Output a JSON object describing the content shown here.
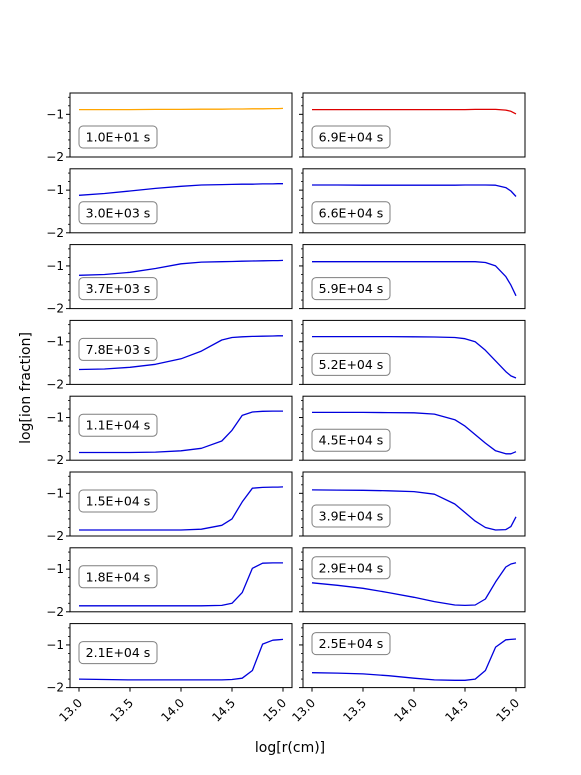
{
  "figure": {
    "ylabel": "log[ion fraction]",
    "xlabel": "log[r(cm)]"
  },
  "chart_data": {
    "type": "line",
    "layout": "8 rows x 2 columns of small multiples, shared x axis",
    "xlim": [
      13.0,
      15.0
    ],
    "ylim": [
      -2,
      -0.5
    ],
    "x_ticks": [
      "13.0",
      "13.5",
      "14.0",
      "14.5",
      "15.0"
    ],
    "x_tick_values": [
      13.0,
      13.5,
      14.0,
      14.5,
      15.0
    ],
    "y_ticks": [
      "−1",
      "−2"
    ],
    "y_tick_values": [
      -1,
      -2
    ],
    "grid": false,
    "colors": {
      "first_left": "#FFA500",
      "first_right": "#DD0000",
      "default": "#0000DD"
    },
    "x": [
      13.0,
      13.25,
      13.5,
      13.75,
      14.0,
      14.2,
      14.4,
      14.5,
      14.6,
      14.7,
      14.8,
      14.9,
      14.95,
      15.0
    ],
    "panels": [
      {
        "label": "1.0E+01 s",
        "column": "left",
        "row": 0,
        "color": "#FFA500",
        "y": [
          -0.89,
          -0.89,
          -0.89,
          -0.885,
          -0.885,
          -0.88,
          -0.88,
          -0.875,
          -0.875,
          -0.87,
          -0.87,
          -0.865,
          -0.865,
          -0.86
        ]
      },
      {
        "label": "6.9E+04 s",
        "column": "right",
        "row": 0,
        "color": "#DD0000",
        "y": [
          -0.89,
          -0.89,
          -0.89,
          -0.89,
          -0.89,
          -0.89,
          -0.89,
          -0.89,
          -0.885,
          -0.885,
          -0.885,
          -0.9,
          -0.93,
          -0.99
        ]
      },
      {
        "label": "3.0E+03 s",
        "column": "left",
        "row": 1,
        "color": "#0000DD",
        "y": [
          -1.12,
          -1.08,
          -1.02,
          -0.96,
          -0.91,
          -0.88,
          -0.87,
          -0.865,
          -0.86,
          -0.86,
          -0.855,
          -0.855,
          -0.85,
          -0.85
        ]
      },
      {
        "label": "6.6E+04 s",
        "column": "right",
        "row": 1,
        "color": "#0000DD",
        "y": [
          -0.88,
          -0.88,
          -0.885,
          -0.885,
          -0.885,
          -0.885,
          -0.885,
          -0.88,
          -0.88,
          -0.88,
          -0.885,
          -0.94,
          -1.02,
          -1.15
        ]
      },
      {
        "label": "3.7E+03 s",
        "column": "left",
        "row": 2,
        "color": "#0000DD",
        "y": [
          -1.22,
          -1.2,
          -1.15,
          -1.06,
          -0.95,
          -0.91,
          -0.9,
          -0.895,
          -0.89,
          -0.885,
          -0.88,
          -0.875,
          -0.875,
          -0.87
        ]
      },
      {
        "label": "5.9E+04 s",
        "column": "right",
        "row": 2,
        "color": "#0000DD",
        "y": [
          -0.9,
          -0.9,
          -0.9,
          -0.9,
          -0.9,
          -0.9,
          -0.9,
          -0.9,
          -0.9,
          -0.92,
          -1.0,
          -1.25,
          -1.45,
          -1.7
        ]
      },
      {
        "label": "7.8E+03 s",
        "column": "left",
        "row": 3,
        "color": "#0000DD",
        "y": [
          -1.65,
          -1.64,
          -1.6,
          -1.53,
          -1.4,
          -1.22,
          -0.96,
          -0.9,
          -0.885,
          -0.875,
          -0.87,
          -0.865,
          -0.86,
          -0.86
        ]
      },
      {
        "label": "5.2E+04 s",
        "column": "right",
        "row": 3,
        "color": "#0000DD",
        "y": [
          -0.88,
          -0.88,
          -0.88,
          -0.88,
          -0.885,
          -0.89,
          -0.9,
          -0.93,
          -1.0,
          -1.2,
          -1.45,
          -1.7,
          -1.8,
          -1.85
        ]
      },
      {
        "label": "1.1E+04 s",
        "column": "left",
        "row": 4,
        "color": "#0000DD",
        "y": [
          -1.82,
          -1.82,
          -1.82,
          -1.81,
          -1.78,
          -1.72,
          -1.55,
          -1.3,
          -0.95,
          -0.87,
          -0.855,
          -0.85,
          -0.85,
          -0.85
        ]
      },
      {
        "label": "4.5E+04 s",
        "column": "right",
        "row": 4,
        "color": "#0000DD",
        "y": [
          -0.88,
          -0.88,
          -0.88,
          -0.885,
          -0.89,
          -0.92,
          -1.05,
          -1.2,
          -1.4,
          -1.6,
          -1.78,
          -1.85,
          -1.85,
          -1.8
        ]
      },
      {
        "label": "1.5E+04 s",
        "column": "left",
        "row": 5,
        "color": "#0000DD",
        "y": [
          -1.86,
          -1.86,
          -1.86,
          -1.86,
          -1.86,
          -1.84,
          -1.75,
          -1.6,
          -1.2,
          -0.88,
          -0.86,
          -0.855,
          -0.855,
          -0.85
        ]
      },
      {
        "label": "3.9E+04 s",
        "column": "right",
        "row": 5,
        "color": "#0000DD",
        "y": [
          -0.92,
          -0.925,
          -0.93,
          -0.94,
          -0.96,
          -1.02,
          -1.25,
          -1.45,
          -1.65,
          -1.8,
          -1.86,
          -1.85,
          -1.78,
          -1.55
        ]
      },
      {
        "label": "1.8E+04 s",
        "column": "left",
        "row": 6,
        "color": "#0000DD",
        "y": [
          -1.86,
          -1.86,
          -1.86,
          -1.86,
          -1.86,
          -1.86,
          -1.85,
          -1.8,
          -1.55,
          -0.98,
          -0.86,
          -0.855,
          -0.855,
          -0.855
        ]
      },
      {
        "label": "2.9E+04 s",
        "column": "right",
        "row": 6,
        "color": "#0000DD",
        "y": [
          -1.32,
          -1.38,
          -1.45,
          -1.55,
          -1.66,
          -1.76,
          -1.84,
          -1.85,
          -1.84,
          -1.7,
          -1.3,
          -0.95,
          -0.88,
          -0.85
        ]
      },
      {
        "label": "2.1E+04 s",
        "column": "left",
        "row": 7,
        "color": "#0000DD",
        "y": [
          -1.8,
          -1.81,
          -1.82,
          -1.82,
          -1.82,
          -1.82,
          -1.82,
          -1.81,
          -1.78,
          -1.6,
          -0.98,
          -0.89,
          -0.88,
          -0.87
        ]
      },
      {
        "label": "2.5E+04 s",
        "column": "right",
        "row": 7,
        "color": "#0000DD",
        "y": [
          -1.65,
          -1.66,
          -1.68,
          -1.72,
          -1.78,
          -1.82,
          -1.83,
          -1.83,
          -1.8,
          -1.6,
          -1.05,
          -0.88,
          -0.87,
          -0.86
        ]
      }
    ]
  }
}
